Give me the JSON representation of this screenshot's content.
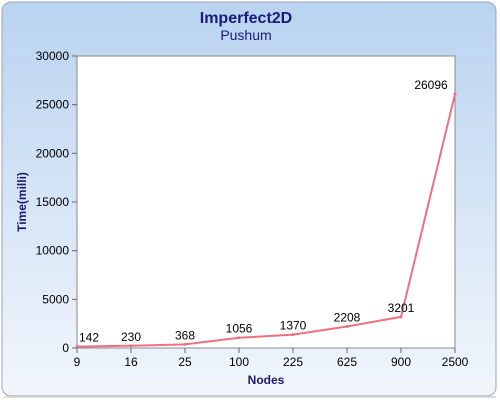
{
  "chart_data": {
    "type": "line",
    "title": "Imperfect2D",
    "subtitle": "Pushum",
    "xlabel": "Nodes",
    "ylabel": "Time(milli)",
    "categories": [
      "9",
      "16",
      "25",
      "100",
      "225",
      "625",
      "900",
      "2500"
    ],
    "series": [
      {
        "values": [
          142,
          230,
          368,
          1056,
          1370,
          2208,
          3201,
          26096
        ]
      }
    ],
    "ylim": [
      0,
      30000
    ],
    "yticks": [
      0,
      5000,
      10000,
      15000,
      20000,
      25000,
      30000
    ],
    "grid": false,
    "legend": "none",
    "colors": {
      "line": "#f07080",
      "title": "#1a1a7a",
      "axis_label": "#1a1a6e",
      "bg_top": "#b9d3f0",
      "bg_bottom": "#eef4fc"
    }
  }
}
